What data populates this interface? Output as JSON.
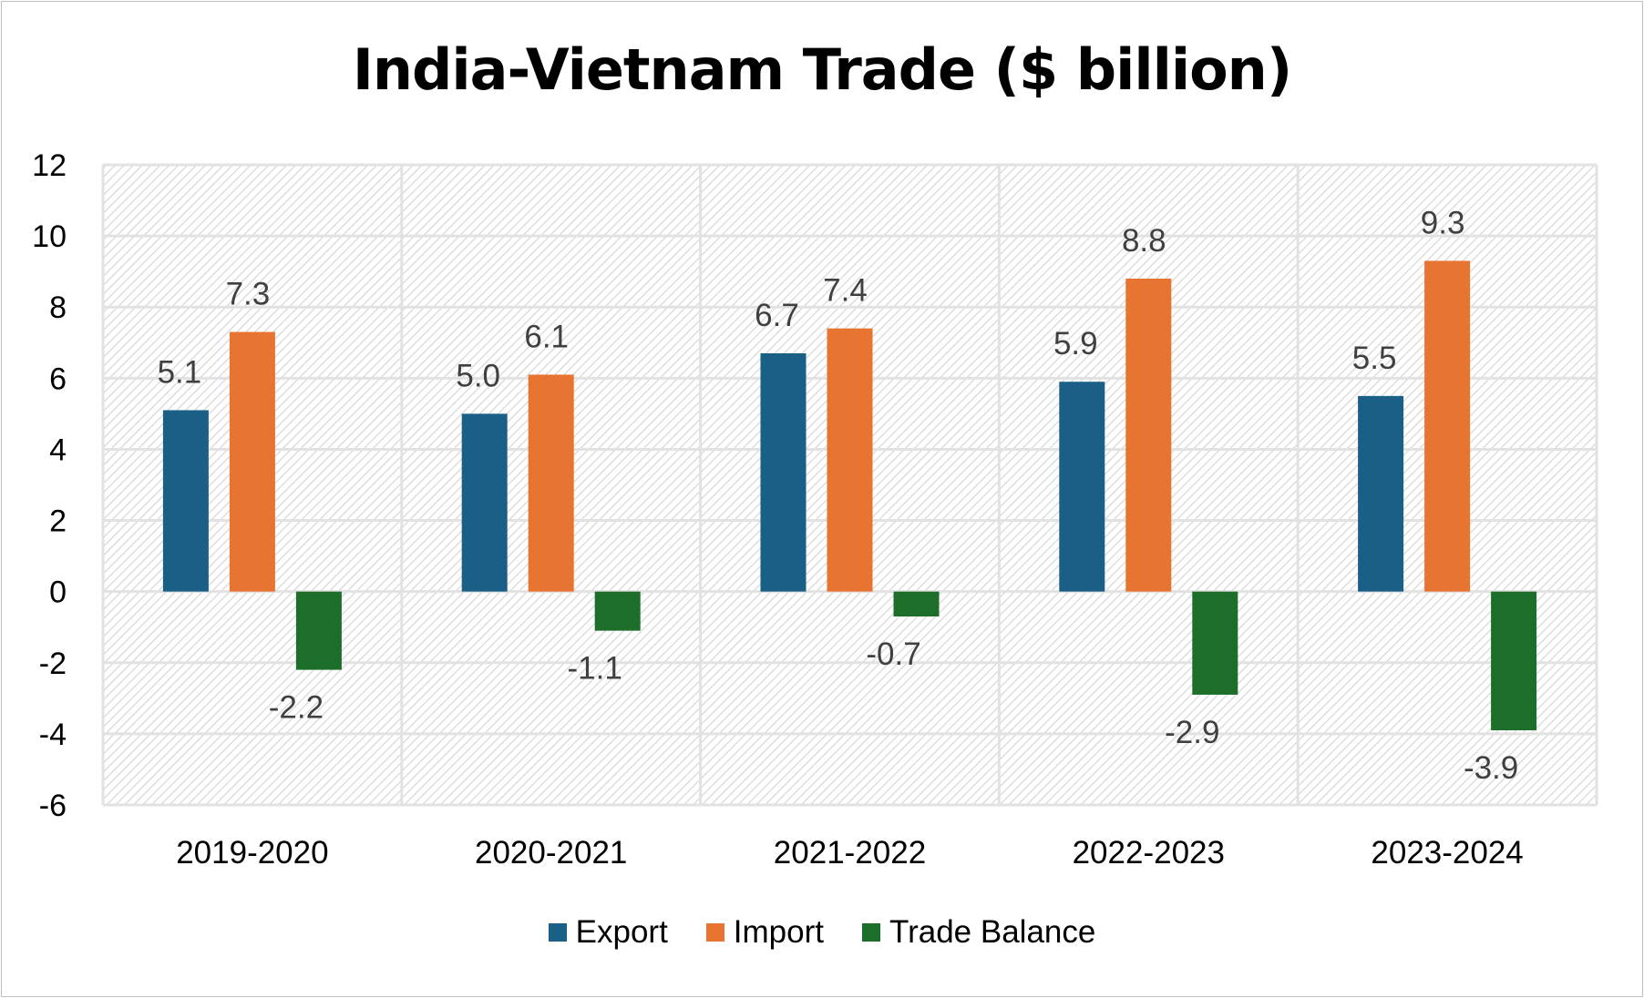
{
  "chart_data": {
    "type": "bar",
    "title": "India-Vietnam Trade ($ billion)",
    "categories": [
      "2019-2020",
      "2020-2021",
      "2021-2022",
      "2022-2023",
      "2023-2024"
    ],
    "series": [
      {
        "name": "Export",
        "color": "#1a5f86",
        "values": [
          5.1,
          5.0,
          6.7,
          5.9,
          5.5
        ],
        "labels": [
          "5.1",
          "5.0",
          "6.7",
          "5.9",
          "5.5"
        ]
      },
      {
        "name": "Import",
        "color": "#e87432",
        "values": [
          7.3,
          6.1,
          7.4,
          8.8,
          9.3
        ],
        "labels": [
          "7.3",
          "6.1",
          "7.4",
          "8.8",
          "9.3"
        ]
      },
      {
        "name": "Trade Balance",
        "color": "#1c6e2a",
        "values": [
          -2.2,
          -1.1,
          -0.7,
          -2.9,
          -3.9
        ],
        "labels": [
          "-2.2",
          "-1.1",
          "-0.7",
          "-2.9",
          "-3.9"
        ]
      }
    ],
    "ylim": [
      -6,
      12
    ],
    "yticks": [
      "12",
      "10",
      "8",
      "6",
      "4",
      "2",
      "0",
      "-2",
      "-4",
      "-6"
    ],
    "grid": true,
    "plot_background": "hatched",
    "legend_position": "bottom"
  }
}
